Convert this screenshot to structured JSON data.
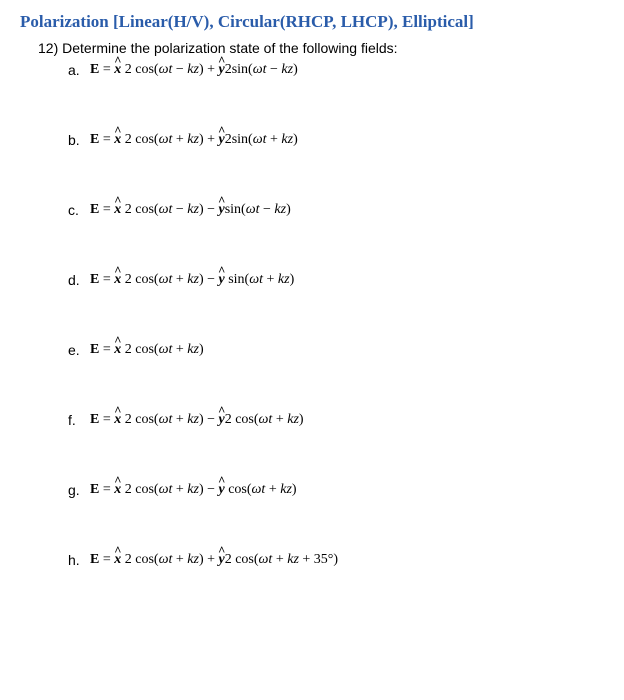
{
  "title": "Polarization [Linear(H/V), Circular(RHCP, LHCP), Elliptical]",
  "question_number": "12)",
  "question_text": "Determine the polarization state of the following fields:",
  "items": {
    "a": {
      "label": "a."
    },
    "b": {
      "label": "b."
    },
    "c": {
      "label": "c."
    },
    "d": {
      "label": "d."
    },
    "e": {
      "label": "e."
    },
    "f": {
      "label": "f."
    },
    "g": {
      "label": "g."
    },
    "h": {
      "label": "h."
    }
  },
  "colors": {
    "title": "#2a5caa",
    "text": "#000000",
    "background": "#ffffff"
  },
  "typography": {
    "title_fontsize": 17,
    "body_fontsize": 14,
    "title_font": "Times New Roman",
    "body_font": "Arial"
  },
  "layout": {
    "item_spacing": 54,
    "left_indent_question": 18,
    "left_indent_items": 48
  }
}
